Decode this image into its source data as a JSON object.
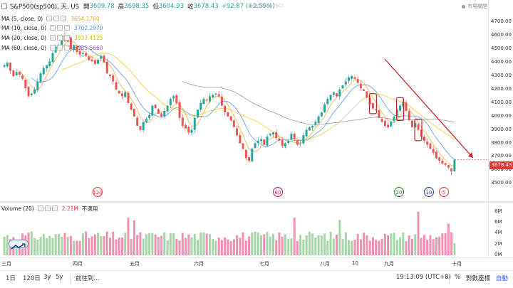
{
  "header": {
    "symbol_title": "S&P500(sp500), 天, US",
    "ohlc": {
      "open_label": "開",
      "open": "3609.78",
      "high_label": "高",
      "high": "3698.35",
      "low_label": "低",
      "low": "3604.93",
      "close_label": "收",
      "close": "3678.43",
      "change": "+92.87 (+2.59%)"
    },
    "faded_center": "最快金幹線(FSC)",
    "faded_right": "市場關閉",
    "watermark_label": "市場關閉"
  },
  "legends": [
    {
      "label": "MA (5, close, 0)",
      "value": "3654.1700",
      "color": "#f5a623"
    },
    {
      "label": "MA (10, close, 0)",
      "value": "3702.2970",
      "color": "#4a90e2"
    },
    {
      "label": "MA (20, close, 0)",
      "value": "3833.4125",
      "color": "#f5d76e"
    },
    {
      "label": "MA (60, close, 0)",
      "value": "3985.5660",
      "color": "#9b59b6"
    }
  ],
  "price_axis": {
    "ticks": [
      "4700.00",
      "4600.00",
      "4500.00",
      "4400.00",
      "4300.00",
      "4200.00",
      "4100.00",
      "4000.00",
      "3900.00",
      "3800.00",
      "3700.00",
      "3600.00",
      "3500.00"
    ],
    "last_price": "3678.43",
    "last_price_color": "#e53935",
    "status_label": "市場關閉"
  },
  "volume": {
    "label": "Volume (20)",
    "value": "2.21M",
    "extra": "不適用",
    "ticks": [
      "8M",
      "6M",
      "4M",
      "2M",
      "0M"
    ]
  },
  "markers": [
    {
      "text": "120",
      "color": "#e53935"
    },
    {
      "text": "60",
      "color": "#c2185b"
    },
    {
      "text": "20",
      "color": "#2e7d32"
    },
    {
      "text": "10",
      "color": "#283593"
    },
    {
      "text": "5",
      "color": "#e53935"
    }
  ],
  "time_axis": {
    "labels": [
      "三月",
      "四月",
      "五月",
      "六月",
      "七月",
      "八月",
      "10",
      "九月",
      "十月"
    ]
  },
  "toolbar": {
    "timeframes": [
      "1日",
      "120日",
      "3y",
      "5y"
    ],
    "goto_label": "前往到...",
    "clock": "19:13:09 (UTC+8)",
    "percent": "%",
    "log_label": "對數座標",
    "auto_label": "自動"
  },
  "chart_data": {
    "type": "candlestick",
    "title": "S&P500(sp500), 天, US",
    "ylim": [
      3480,
      4760
    ],
    "x_months": [
      "三月",
      "四月",
      "五月",
      "六月",
      "七月",
      "八月",
      "九月",
      "十月"
    ],
    "ohlc_close_series": [
      4380,
      4400,
      4340,
      4300,
      4330,
      4310,
      4280,
      4210,
      4150,
      4170,
      4200,
      4260,
      4320,
      4360,
      4380,
      4410,
      4470,
      4520,
      4530,
      4600,
      4560,
      4580,
      4500,
      4530,
      4480,
      4460,
      4470,
      4450,
      4420,
      4410,
      4390,
      4420,
      4450,
      4400,
      4320,
      4300,
      4260,
      4200,
      4170,
      4150,
      4180,
      4100,
      4050,
      4000,
      3930,
      3900,
      3960,
      3980,
      4010,
      4080,
      4060,
      4020,
      4000,
      4040,
      4080,
      4130,
      4150,
      4100,
      3990,
      3930,
      3910,
      3880,
      3900,
      3990,
      4050,
      4100,
      4130,
      4120,
      4150,
      4160,
      4170,
      4150,
      4080,
      4030,
      4000,
      3970,
      3920,
      3860,
      3800,
      3760,
      3690,
      3670,
      3760,
      3800,
      3820,
      3830,
      3790,
      3850,
      3870,
      3880,
      3840,
      3820,
      3780,
      3800,
      3820,
      3870,
      3830,
      3790,
      3800,
      3860,
      3900,
      3920,
      3930,
      3960,
      4000,
      4030,
      4090,
      4130,
      4160,
      4180,
      4150,
      4200,
      4230,
      4260,
      4290,
      4300,
      4280,
      4250,
      4210,
      4190,
      4140,
      4090,
      4060,
      4050,
      3990,
      3960,
      3930,
      3920,
      3960,
      4000,
      4050,
      4080,
      4110,
      4040,
      3970,
      3920,
      3950,
      3900,
      3850,
      3820,
      3790,
      3760,
      3730,
      3690,
      3670,
      3650,
      3640,
      3620,
      3590,
      3678
    ],
    "ma5": {
      "name": "MA (5, close, 0)",
      "last": 3654.17
    },
    "ma10": {
      "name": "MA (10, close, 0)",
      "last": 3702.297
    },
    "ma20": {
      "name": "MA (20, close, 0)",
      "last": 3833.4125
    },
    "ma60": {
      "name": "MA (60, close, 0)",
      "last": 3985.566
    },
    "volume_ylim": [
      0,
      9
    ],
    "volume_unit": "M",
    "volume_last": 2.21,
    "trend_arrow": "down",
    "grid": false
  }
}
